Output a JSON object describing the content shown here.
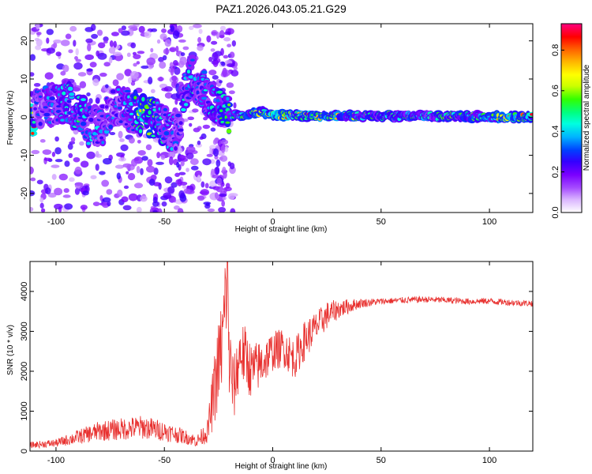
{
  "chart_data": [
    {
      "type": "heatmap",
      "title": "PAZ1.2026.043.05.21.G29",
      "xlabel": "Height of straight line (km)",
      "ylabel": "Frequency (Hz)",
      "xlim": [
        -112,
        120
      ],
      "ylim": [
        -25,
        24.5
      ],
      "xticks": [
        -100,
        -50,
        0,
        50,
        100
      ],
      "yticks": [
        -20,
        -10,
        0,
        10,
        20
      ],
      "colorbar": {
        "label": "Normalized spectral amplitude",
        "range": [
          0.0,
          0.93
        ],
        "ticks": [
          0.0,
          0.2,
          0.4,
          0.6,
          0.8
        ],
        "colors": [
          "#ffffff",
          "#d9b3ff",
          "#a64dff",
          "#7a00ff",
          "#3300ff",
          "#0040ff",
          "#00b3ff",
          "#00ffe0",
          "#00ff80",
          "#33ff00",
          "#ccff00",
          "#ffff00",
          "#ffb300",
          "#ff5a00",
          "#ff0000",
          "#ff0080"
        ]
      },
      "ridge": [
        {
          "x": -110,
          "f": 2.0,
          "a": 0.3
        },
        {
          "x": -95,
          "f": 4.0,
          "a": 0.45
        },
        {
          "x": -90,
          "f": 1.5,
          "a": 0.5
        },
        {
          "x": -85,
          "f": -2.0,
          "a": 0.45
        },
        {
          "x": -80,
          "f": -3.0,
          "a": 0.4
        },
        {
          "x": -72,
          "f": 3.5,
          "a": 0.35
        },
        {
          "x": -66,
          "f": 1.5,
          "a": 0.4
        },
        {
          "x": -60,
          "f": 1.2,
          "a": 0.75
        },
        {
          "x": -52,
          "f": -1.5,
          "a": 0.5
        },
        {
          "x": -45,
          "f": -4.0,
          "a": 0.35
        },
        {
          "x": -38,
          "f": 11.0,
          "a": 0.5
        },
        {
          "x": -33,
          "f": 8.0,
          "a": 0.4
        },
        {
          "x": -28,
          "f": 4.0,
          "a": 0.45
        },
        {
          "x": -22,
          "f": 0.5,
          "a": 0.55
        },
        {
          "x": -15,
          "f": 0.5,
          "a": 0.6
        },
        {
          "x": -5,
          "f": 1.5,
          "a": 0.7
        },
        {
          "x": 0,
          "f": 0.5,
          "a": 0.9
        },
        {
          "x": 10,
          "f": 0.5,
          "a": 0.75
        },
        {
          "x": 20,
          "f": 0.2,
          "a": 0.85
        },
        {
          "x": 40,
          "f": 0.3,
          "a": 0.6
        },
        {
          "x": 60,
          "f": 0.3,
          "a": 0.55
        },
        {
          "x": 80,
          "f": 0.2,
          "a": 0.55
        },
        {
          "x": 100,
          "f": 0.1,
          "a": 0.7
        },
        {
          "x": 120,
          "f": 0.0,
          "a": 0.85
        }
      ]
    },
    {
      "type": "line",
      "xlabel": "Height of straight line (km)",
      "ylabel": "SNR (10 * v/v)",
      "xlim": [
        -112,
        120
      ],
      "ylim": [
        0,
        4750
      ],
      "xticks": [
        -100,
        -50,
        0,
        50,
        100
      ],
      "yticks": [
        0,
        1000,
        2000,
        3000,
        4000
      ],
      "series": [
        {
          "name": "SNR",
          "color": "#e8312f",
          "x": [
            -112,
            -100,
            -90,
            -80,
            -70,
            -60,
            -50,
            -40,
            -35,
            -30,
            -27,
            -25,
            -23,
            -21,
            -20,
            -18,
            -15,
            -12,
            -10,
            -5,
            0,
            5,
            10,
            15,
            20,
            25,
            30,
            40,
            50,
            60,
            70,
            80,
            90,
            100,
            110,
            120
          ],
          "y": [
            150,
            200,
            350,
            500,
            550,
            600,
            500,
            350,
            250,
            500,
            1500,
            2200,
            2800,
            4500,
            2200,
            1500,
            2500,
            2300,
            2000,
            2200,
            2500,
            2600,
            2300,
            2800,
            3100,
            3400,
            3550,
            3700,
            3750,
            3780,
            3800,
            3780,
            3750,
            3760,
            3720,
            3700
          ],
          "noise": [
            80,
            100,
            180,
            250,
            280,
            300,
            250,
            180,
            150,
            300,
            900,
            1100,
            1300,
            1500,
            1200,
            800,
            800,
            800,
            700,
            600,
            500,
            500,
            500,
            500,
            400,
            350,
            250,
            120,
            80,
            80,
            80,
            80,
            80,
            80,
            80,
            80
          ]
        }
      ]
    }
  ]
}
